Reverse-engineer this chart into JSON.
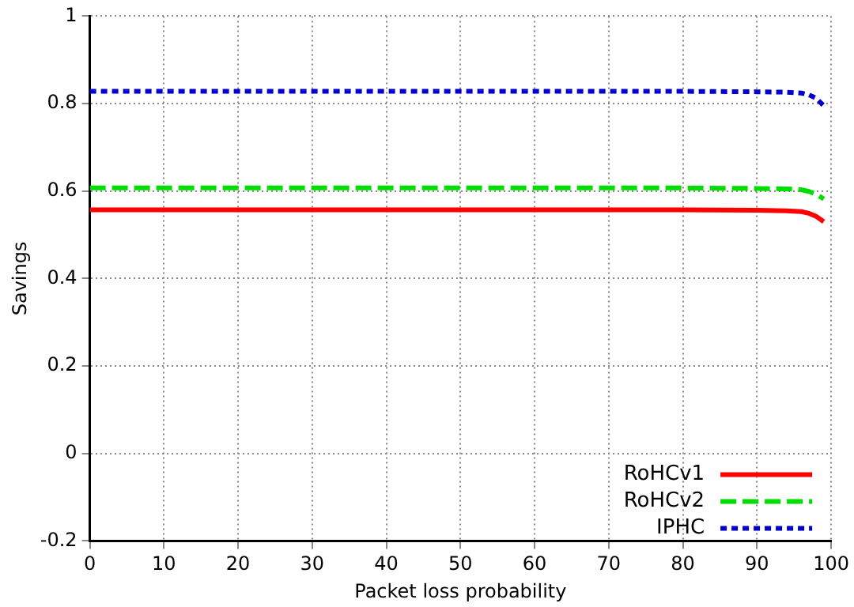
{
  "chart_data": {
    "type": "line",
    "xlabel": "Packet loss probability",
    "ylabel": "Savings",
    "x": [
      0,
      10,
      20,
      30,
      40,
      50,
      60,
      70,
      80,
      90,
      94,
      96,
      97,
      98,
      99
    ],
    "series": [
      {
        "name": "RoHCv1",
        "color": "#ff0000",
        "line_style": "solid",
        "values": [
          0.557,
          0.557,
          0.557,
          0.557,
          0.557,
          0.557,
          0.557,
          0.557,
          0.557,
          0.556,
          0.555,
          0.553,
          0.549,
          0.542,
          0.53
        ]
      },
      {
        "name": "RoHCv2",
        "color": "#00dd00",
        "line_style": "dashed",
        "values": [
          0.607,
          0.607,
          0.607,
          0.607,
          0.607,
          0.607,
          0.607,
          0.607,
          0.607,
          0.606,
          0.605,
          0.603,
          0.599,
          0.593,
          0.582
        ]
      },
      {
        "name": "IPHC",
        "color": "#0000cc",
        "line_style": "dotted",
        "values": [
          0.828,
          0.828,
          0.828,
          0.828,
          0.828,
          0.828,
          0.828,
          0.828,
          0.828,
          0.827,
          0.826,
          0.824,
          0.82,
          0.812,
          0.795
        ]
      }
    ],
    "xlim": [
      0,
      100
    ],
    "xticks": [
      0,
      10,
      20,
      30,
      40,
      50,
      60,
      70,
      80,
      90,
      100
    ],
    "ylim": [
      -0.2,
      1
    ],
    "yticks": [
      -0.2,
      0,
      0.2,
      0.4,
      0.6,
      0.8,
      1
    ],
    "grid": true,
    "legend": "bottom right",
    "marker": "none"
  }
}
